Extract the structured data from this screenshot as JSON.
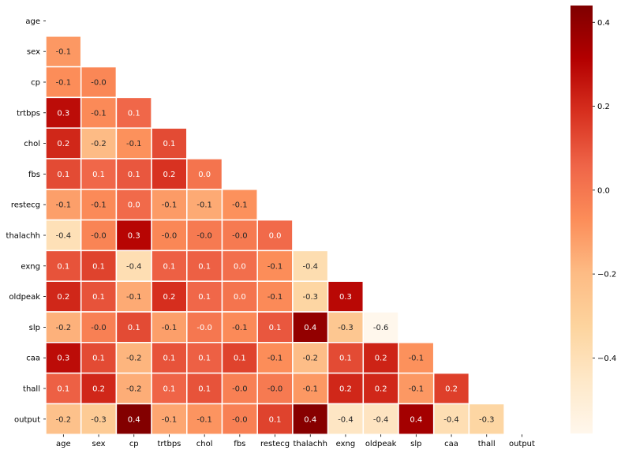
{
  "chart_data": {
    "type": "heatmap",
    "title": "",
    "xlabel": "",
    "ylabel": "",
    "mask": "upper-triangle-including-diagonal",
    "annotation_format": "0.1f",
    "colormap": "OrRd",
    "colormap_stops": [
      "#fff7ec",
      "#fee8c8",
      "#fdd49e",
      "#fdbb84",
      "#fc8d59",
      "#ef6548",
      "#d7301f",
      "#b30000",
      "#7f0000"
    ],
    "vmin": -0.58,
    "vmax": 0.44,
    "cell_border_color": "#ffffff",
    "labels": [
      "age",
      "sex",
      "cp",
      "trtbps",
      "chol",
      "fbs",
      "restecg",
      "thalachh",
      "exng",
      "oldpeak",
      "slp",
      "caa",
      "thall",
      "output"
    ],
    "values": [
      [],
      [
        -0.1
      ],
      [
        -0.07,
        -0.05
      ],
      [
        0.28,
        -0.06,
        0.05
      ],
      [
        0.21,
        -0.2,
        -0.08,
        0.12
      ],
      [
        0.12,
        0.05,
        0.09,
        0.18,
        0.01
      ],
      [
        -0.12,
        -0.06,
        0.04,
        -0.11,
        -0.15,
        -0.08
      ],
      [
        -0.4,
        -0.04,
        0.3,
        -0.05,
        -0.01,
        -0.01,
        0.04
      ],
      [
        0.1,
        0.14,
        -0.39,
        0.07,
        0.07,
        0.03,
        -0.07,
        -0.38
      ],
      [
        0.21,
        0.1,
        -0.15,
        0.19,
        0.05,
        0.01,
        -0.06,
        -0.34,
        0.29
      ],
      [
        -0.17,
        -0.03,
        0.12,
        -0.12,
        -0.0,
        -0.06,
        0.09,
        0.39,
        -0.26,
        -0.58
      ],
      [
        0.28,
        0.12,
        -0.18,
        0.1,
        0.07,
        0.14,
        -0.07,
        -0.21,
        0.12,
        0.22,
        -0.08
      ],
      [
        0.07,
        0.21,
        -0.16,
        0.06,
        0.1,
        -0.03,
        -0.01,
        -0.1,
        0.21,
        0.21,
        -0.1,
        0.15
      ],
      [
        -0.23,
        -0.28,
        0.43,
        -0.14,
        -0.09,
        -0.03,
        0.14,
        0.42,
        -0.44,
        -0.43,
        0.35,
        -0.39,
        -0.34
      ]
    ],
    "colorbar": {
      "ticks": [
        0.4,
        0.2,
        0.0,
        -0.2,
        -0.4
      ],
      "tick_labels": [
        "0.4",
        "0.2",
        "0.0",
        "−0.2",
        "−0.4"
      ]
    }
  }
}
